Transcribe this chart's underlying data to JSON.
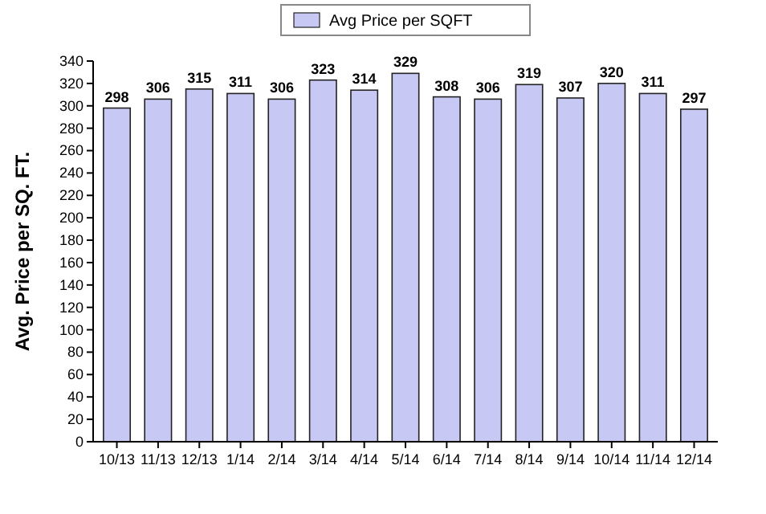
{
  "chart_data": {
    "type": "bar",
    "ylabel": "Avg. Price per SQ. FT.",
    "categories": [
      "10/13",
      "11/13",
      "12/13",
      "1/14",
      "2/14",
      "3/14",
      "4/14",
      "5/14",
      "6/14",
      "7/14",
      "8/14",
      "9/14",
      "10/14",
      "11/14",
      "12/14"
    ],
    "series": [
      {
        "name": "Avg Price per SQFT",
        "color": "#c8c8f4",
        "values": [
          298,
          306,
          315,
          311,
          306,
          323,
          314,
          329,
          308,
          306,
          319,
          307,
          320,
          311,
          297
        ]
      }
    ],
    "ylim": [
      0,
      340
    ],
    "yticks": [
      0,
      20,
      40,
      60,
      80,
      100,
      120,
      140,
      160,
      180,
      200,
      220,
      240,
      260,
      280,
      300,
      320,
      340
    ],
    "data_labels": true,
    "legend": "top",
    "grid": false
  }
}
